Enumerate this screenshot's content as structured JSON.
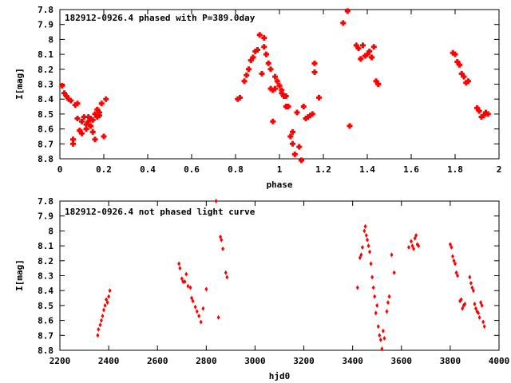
{
  "chart_data": [
    {
      "type": "scatter",
      "title": "182912-0926.4 phased with P=389.0day",
      "xlabel": "phase",
      "ylabel": "I[mag]",
      "xlim": [
        0,
        2
      ],
      "ylim": [
        7.8,
        8.8
      ],
      "y_inverted": true,
      "xticks": [
        0,
        0.2,
        0.4,
        0.6,
        0.8,
        1,
        1.2,
        1.4,
        1.6,
        1.8,
        2
      ],
      "xtick_labels": [
        "0",
        "0.2",
        "0.4",
        "0.6",
        "0.8",
        "1",
        "1.2",
        "1.4",
        "1.6",
        "1.8",
        "2"
      ],
      "yticks": [
        7.8,
        7.9,
        8,
        8.1,
        8.2,
        8.3,
        8.4,
        8.5,
        8.6,
        8.7,
        8.8
      ],
      "ytick_labels": [
        "7.8",
        "7.9",
        "8",
        "8.1",
        "8.2",
        "8.3",
        "8.4",
        "8.5",
        "8.6",
        "8.7",
        "8.8"
      ],
      "grid": false,
      "marker_color": "#ff0000",
      "points": [
        [
          0.01,
          8.31
        ],
        [
          0.02,
          8.36
        ],
        [
          0.03,
          8.38
        ],
        [
          0.04,
          8.4
        ],
        [
          0.05,
          8.41
        ],
        [
          0.06,
          8.67
        ],
        [
          0.06,
          8.7
        ],
        [
          0.07,
          8.44
        ],
        [
          0.08,
          8.43
        ],
        [
          0.08,
          8.53
        ],
        [
          0.09,
          8.61
        ],
        [
          0.1,
          8.55
        ],
        [
          0.1,
          8.63
        ],
        [
          0.11,
          8.52
        ],
        [
          0.12,
          8.57
        ],
        [
          0.12,
          8.6
        ],
        [
          0.13,
          8.52
        ],
        [
          0.13,
          8.55
        ],
        [
          0.14,
          8.53
        ],
        [
          0.14,
          8.58
        ],
        [
          0.15,
          8.54
        ],
        [
          0.15,
          8.62
        ],
        [
          0.16,
          8.67
        ],
        [
          0.16,
          8.5
        ],
        [
          0.17,
          8.47
        ],
        [
          0.17,
          8.52
        ],
        [
          0.18,
          8.51
        ],
        [
          0.18,
          8.49
        ],
        [
          0.19,
          8.43
        ],
        [
          0.2,
          8.65
        ],
        [
          0.21,
          8.4
        ],
        [
          0.81,
          8.4
        ],
        [
          0.82,
          8.39
        ],
        [
          0.84,
          8.28
        ],
        [
          0.85,
          8.24
        ],
        [
          0.86,
          8.2
        ],
        [
          0.87,
          8.14
        ],
        [
          0.88,
          8.12
        ],
        [
          0.89,
          8.08
        ],
        [
          0.9,
          8.07
        ],
        [
          0.91,
          7.97
        ],
        [
          0.92,
          8.23
        ],
        [
          0.93,
          7.99
        ],
        [
          0.93,
          8.05
        ],
        [
          0.94,
          8.1
        ],
        [
          0.95,
          8.16
        ],
        [
          0.96,
          8.2
        ],
        [
          0.96,
          8.33
        ],
        [
          0.97,
          8.34
        ],
        [
          0.97,
          8.55
        ],
        [
          0.98,
          8.33
        ],
        [
          0.98,
          8.25
        ],
        [
          0.99,
          8.28
        ],
        [
          1.0,
          8.31
        ],
        [
          1.01,
          8.36
        ],
        [
          1.01,
          8.34
        ],
        [
          1.02,
          8.38
        ],
        [
          1.03,
          8.38
        ],
        [
          1.03,
          8.45
        ],
        [
          1.04,
          8.45
        ],
        [
          1.05,
          8.65
        ],
        [
          1.06,
          8.62
        ],
        [
          1.06,
          8.7
        ],
        [
          1.07,
          8.77
        ],
        [
          1.08,
          8.49
        ],
        [
          1.09,
          8.72
        ],
        [
          1.1,
          8.81
        ],
        [
          1.11,
          8.45
        ],
        [
          1.12,
          8.53
        ],
        [
          1.13,
          8.52
        ],
        [
          1.14,
          8.51
        ],
        [
          1.15,
          8.5
        ],
        [
          1.16,
          8.22
        ],
        [
          1.16,
          8.16
        ],
        [
          1.18,
          8.39
        ],
        [
          1.29,
          7.89
        ],
        [
          1.31,
          7.81
        ],
        [
          1.32,
          8.58
        ],
        [
          1.35,
          8.04
        ],
        [
          1.36,
          8.06
        ],
        [
          1.37,
          8.13
        ],
        [
          1.38,
          8.04
        ],
        [
          1.39,
          8.11
        ],
        [
          1.4,
          8.1
        ],
        [
          1.41,
          8.08
        ],
        [
          1.42,
          8.12
        ],
        [
          1.43,
          8.05
        ],
        [
          1.44,
          8.28
        ],
        [
          1.45,
          8.3
        ],
        [
          1.79,
          8.09
        ],
        [
          1.8,
          8.1
        ],
        [
          1.81,
          8.15
        ],
        [
          1.82,
          8.17
        ],
        [
          1.83,
          8.23
        ],
        [
          1.84,
          8.25
        ],
        [
          1.85,
          8.29
        ],
        [
          1.86,
          8.28
        ],
        [
          1.9,
          8.46
        ],
        [
          1.91,
          8.48
        ],
        [
          1.92,
          8.52
        ],
        [
          1.93,
          8.51
        ],
        [
          1.94,
          8.49
        ],
        [
          1.95,
          8.5
        ]
      ]
    },
    {
      "type": "scatter",
      "title": "182912-0926.4 not phased light curve",
      "xlabel": "hjd0",
      "ylabel": "I[mag]",
      "xlim": [
        2200,
        4000
      ],
      "ylim": [
        7.8,
        8.8
      ],
      "y_inverted": true,
      "xticks": [
        2200,
        2400,
        2600,
        2800,
        3000,
        3200,
        3400,
        3600,
        3800,
        4000
      ],
      "xtick_labels": [
        "2200",
        "2400",
        "2600",
        "2800",
        "3000",
        "3200",
        "3400",
        "3600",
        "3800",
        "4000"
      ],
      "yticks": [
        7.8,
        7.9,
        8,
        8.1,
        8.2,
        8.3,
        8.4,
        8.5,
        8.6,
        8.7,
        8.8
      ],
      "ytick_labels": [
        "7.8",
        "7.9",
        "8",
        "8.1",
        "8.2",
        "8.3",
        "8.4",
        "8.5",
        "8.6",
        "8.7",
        "8.8"
      ],
      "grid": false,
      "marker_color": "#ff0000",
      "points": [
        [
          2355,
          8.7
        ],
        [
          2358,
          8.66
        ],
        [
          2365,
          8.63
        ],
        [
          2370,
          8.6
        ],
        [
          2375,
          8.57
        ],
        [
          2380,
          8.53
        ],
        [
          2385,
          8.5
        ],
        [
          2390,
          8.46
        ],
        [
          2395,
          8.48
        ],
        [
          2400,
          8.44
        ],
        [
          2405,
          8.4
        ],
        [
          2688,
          8.22
        ],
        [
          2692,
          8.25
        ],
        [
          2700,
          8.32
        ],
        [
          2705,
          8.34
        ],
        [
          2712,
          8.34
        ],
        [
          2718,
          8.29
        ],
        [
          2725,
          8.37
        ],
        [
          2735,
          8.38
        ],
        [
          2740,
          8.45
        ],
        [
          2745,
          8.47
        ],
        [
          2755,
          8.51
        ],
        [
          2762,
          8.54
        ],
        [
          2770,
          8.57
        ],
        [
          2778,
          8.61
        ],
        [
          2787,
          8.52
        ],
        [
          2800,
          8.39
        ],
        [
          2840,
          7.8
        ],
        [
          2850,
          8.58
        ],
        [
          2858,
          8.04
        ],
        [
          2862,
          8.06
        ],
        [
          2868,
          8.12
        ],
        [
          2880,
          8.28
        ],
        [
          2885,
          8.31
        ],
        [
          3420,
          8.38
        ],
        [
          3430,
          8.18
        ],
        [
          3435,
          8.16
        ],
        [
          3440,
          8.11
        ],
        [
          3448,
          8.0
        ],
        [
          3452,
          7.97
        ],
        [
          3456,
          8.03
        ],
        [
          3460,
          8.06
        ],
        [
          3465,
          8.1
        ],
        [
          3470,
          8.14
        ],
        [
          3475,
          8.22
        ],
        [
          3480,
          8.31
        ],
        [
          3485,
          8.38
        ],
        [
          3490,
          8.44
        ],
        [
          3495,
          8.55
        ],
        [
          3500,
          8.5
        ],
        [
          3505,
          8.64
        ],
        [
          3510,
          8.7
        ],
        [
          3515,
          8.73
        ],
        [
          3520,
          8.79
        ],
        [
          3525,
          8.67
        ],
        [
          3530,
          8.72
        ],
        [
          3540,
          8.54
        ],
        [
          3545,
          8.48
        ],
        [
          3550,
          8.44
        ],
        [
          3560,
          8.16
        ],
        [
          3570,
          8.28
        ],
        [
          3630,
          8.11
        ],
        [
          3640,
          8.07
        ],
        [
          3645,
          8.1
        ],
        [
          3650,
          8.12
        ],
        [
          3655,
          8.05
        ],
        [
          3660,
          8.03
        ],
        [
          3665,
          8.09
        ],
        [
          3670,
          8.1
        ],
        [
          3800,
          8.09
        ],
        [
          3805,
          8.11
        ],
        [
          3810,
          8.17
        ],
        [
          3815,
          8.2
        ],
        [
          3820,
          8.22
        ],
        [
          3825,
          8.28
        ],
        [
          3830,
          8.3
        ],
        [
          3840,
          8.47
        ],
        [
          3845,
          8.46
        ],
        [
          3850,
          8.52
        ],
        [
          3855,
          8.5
        ],
        [
          3860,
          8.49
        ],
        [
          3880,
          8.31
        ],
        [
          3885,
          8.35
        ],
        [
          3890,
          8.38
        ],
        [
          3895,
          8.4
        ],
        [
          3900,
          8.49
        ],
        [
          3905,
          8.52
        ],
        [
          3910,
          8.54
        ],
        [
          3915,
          8.55
        ],
        [
          3920,
          8.58
        ],
        [
          3925,
          8.48
        ],
        [
          3930,
          8.5
        ],
        [
          3935,
          8.61
        ],
        [
          3940,
          8.64
        ]
      ]
    }
  ]
}
